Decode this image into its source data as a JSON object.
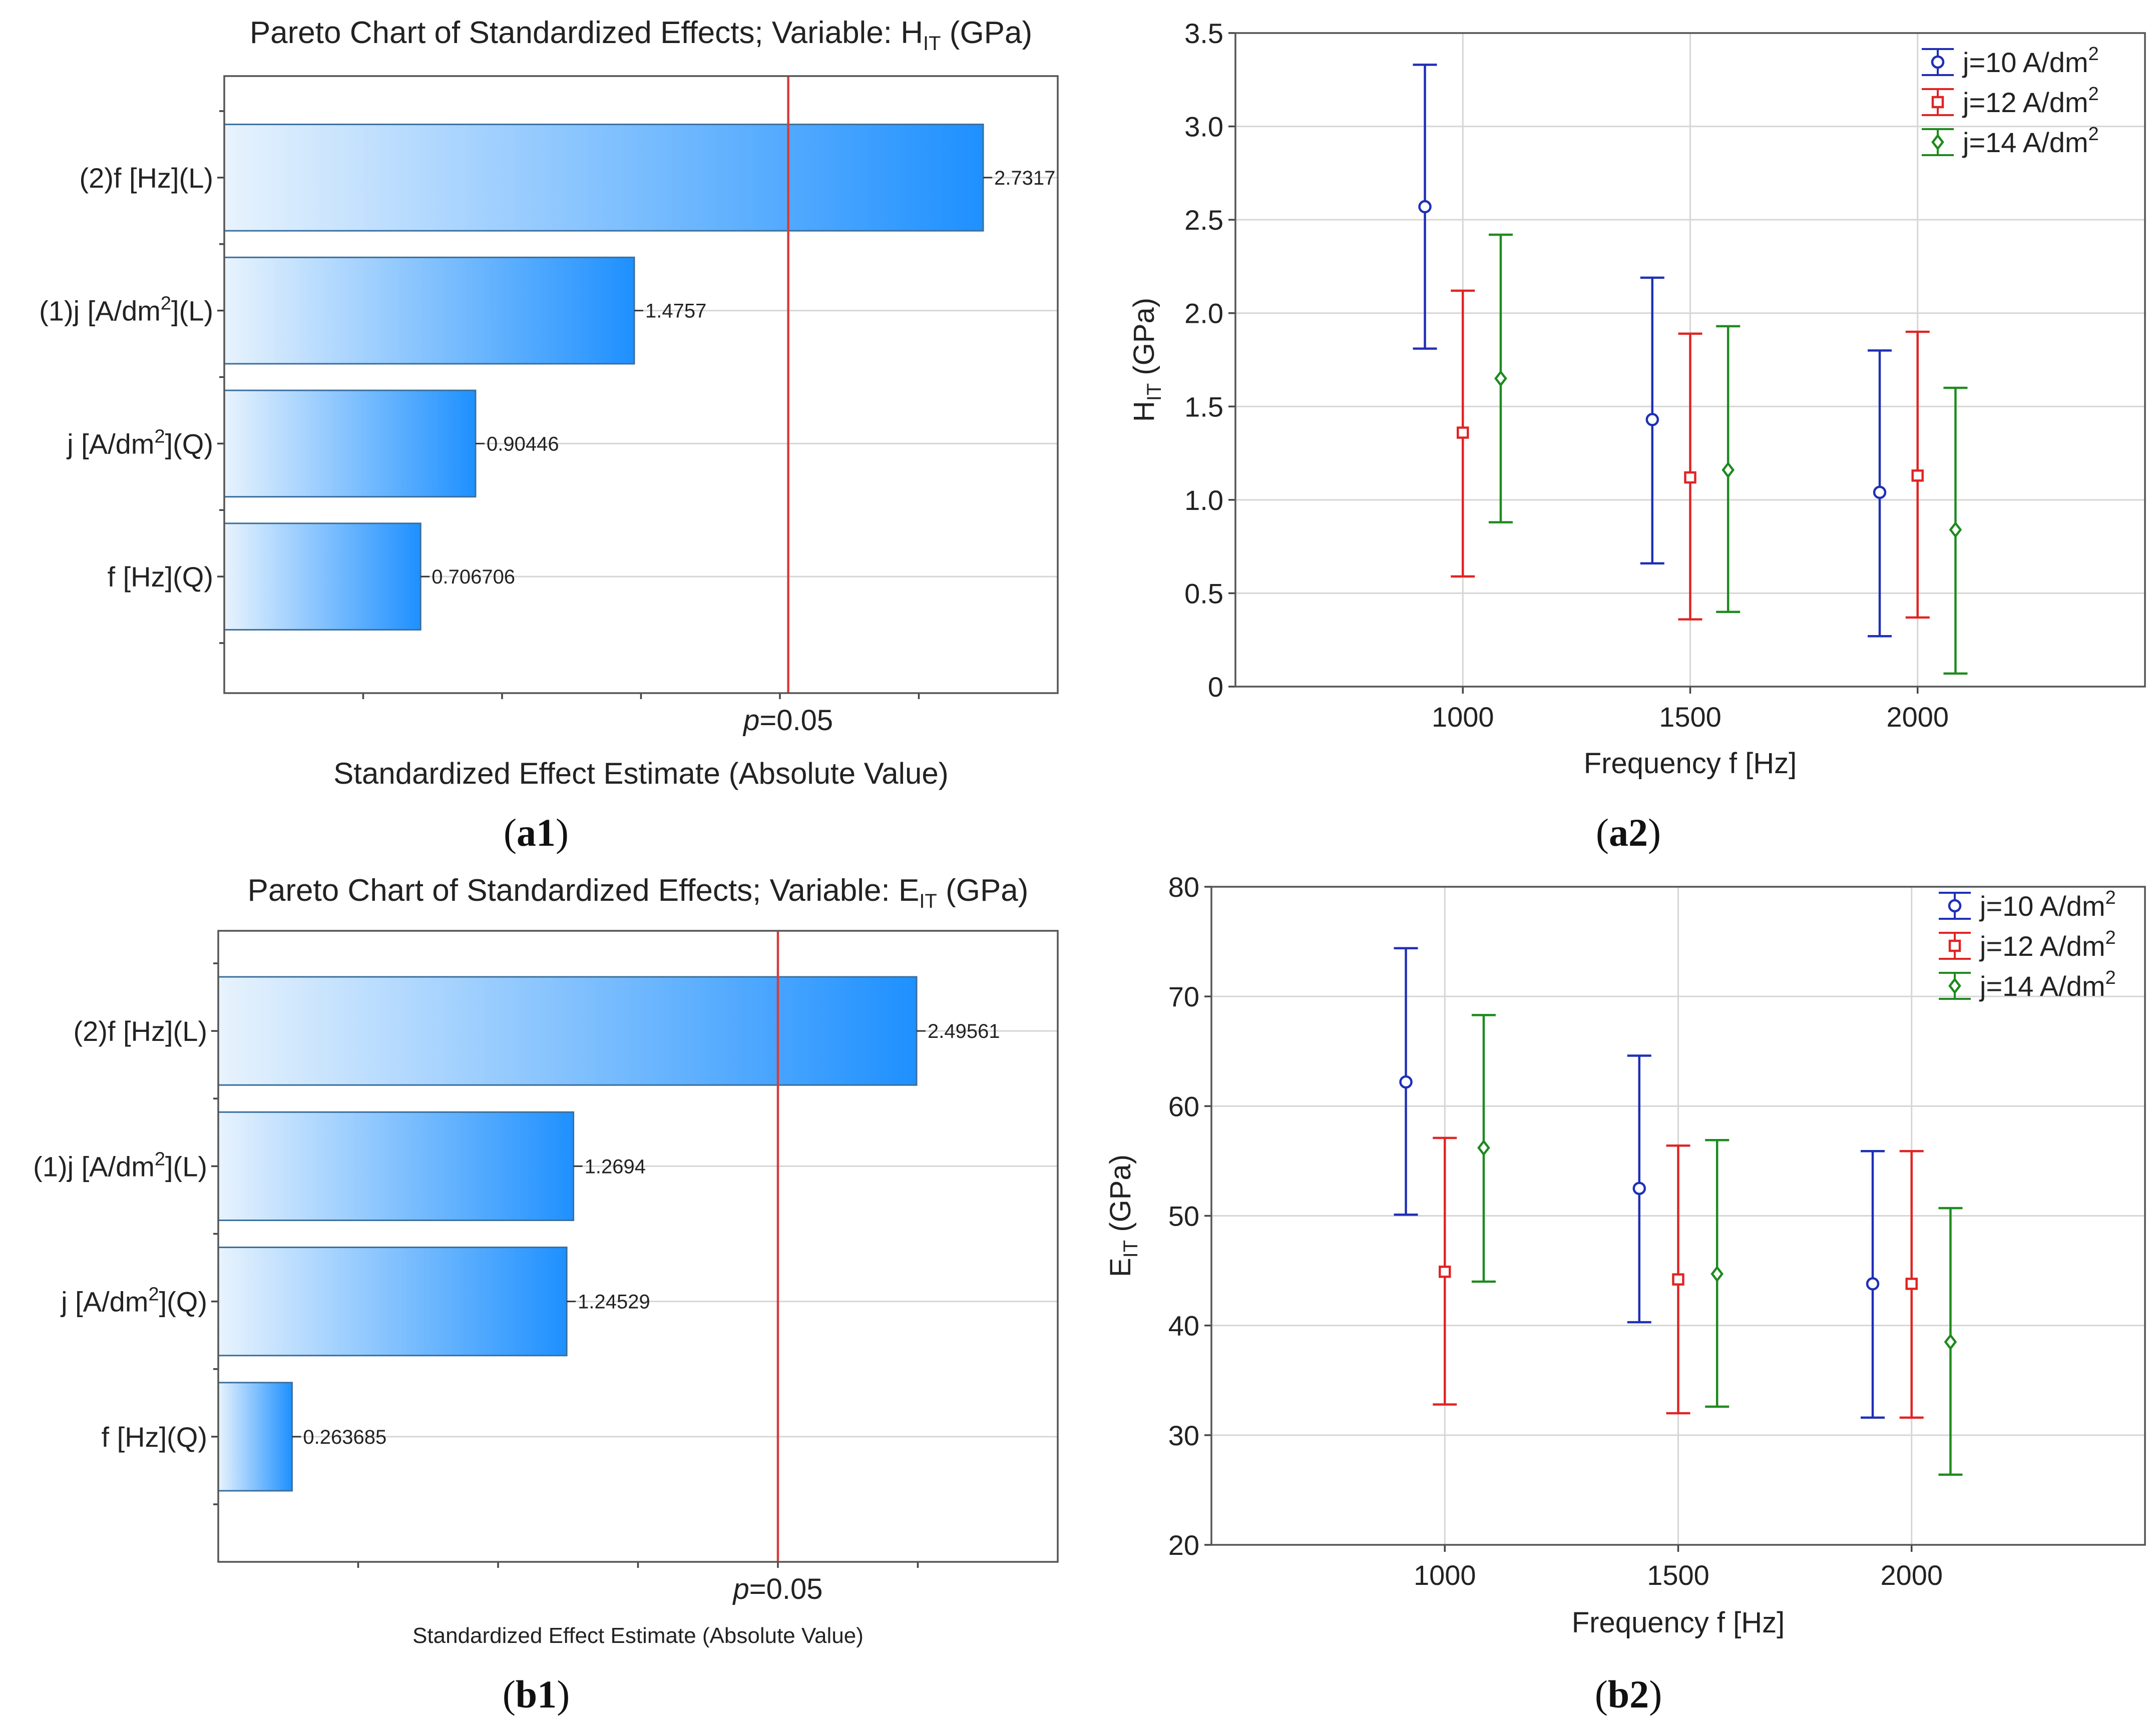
{
  "colors": {
    "bar_light": "#e8f3fd",
    "bar_dark": "#1e90ff",
    "bar_stroke": "#3a6f9e",
    "pline": "#d93b3b",
    "series_blue": "#1f2fb6",
    "series_red": "#e02424",
    "series_green": "#1e8a1e"
  },
  "chart_data": [
    {
      "id": "a1",
      "type": "bar",
      "orientation": "horizontal",
      "title_pre": "Pareto Chart of Standardized Effects; Variable: H",
      "title_sub": "IT",
      "title_post": " (GPa)",
      "xlabel": "Standardized Effect Estimate (Absolute Value)",
      "panel_label": "a1",
      "p_line": {
        "value": 2.03,
        "label_p": "p",
        "label_rest": "=0.05"
      },
      "xlim": [
        0,
        3.0
      ],
      "bars": [
        {
          "pre": "(2)f [Hz](L)",
          "sup": "",
          "post": "",
          "value": 2.7317,
          "label": "2.7317"
        },
        {
          "pre": "(1)j [A/dm",
          "sup": "2",
          "post": "](L)",
          "value": 1.4757,
          "label": "1.4757"
        },
        {
          "pre": "j [A/dm",
          "sup": "2",
          "post": "](Q)",
          "value": 0.90446,
          "label": "0.90446"
        },
        {
          "pre": "f [Hz](Q)",
          "sup": "",
          "post": "",
          "value": 0.706706,
          "label": "0.706706"
        }
      ]
    },
    {
      "id": "a2",
      "type": "scatter",
      "errorbars": true,
      "ylabel_pre": "H",
      "ylabel_sub": "IT",
      "ylabel_post": " (GPa)",
      "xlabel": "Frequency f [Hz]",
      "panel_label": "a2",
      "xlim": [
        500,
        2500
      ],
      "ylim": [
        0,
        3.5
      ],
      "x_ticks": [
        1000,
        1500,
        2000
      ],
      "y_ticks": [
        0,
        0.5,
        1.0,
        1.5,
        2.0,
        2.5,
        3.0,
        3.5
      ],
      "y_tick_labels": [
        "0",
        "0.5",
        "1.0",
        "1.5",
        "2.0",
        "2.5",
        "3.0",
        "3.5"
      ],
      "series": [
        {
          "name": "j=10 A/dm2",
          "label_pre": "j=10 A/dm",
          "label_sup": "2",
          "color": "#1f2fb6",
          "marker": "circle",
          "x_offset": -75,
          "x": [
            1000,
            1500,
            2000
          ],
          "mean": [
            2.57,
            1.43,
            1.04
          ],
          "lower": [
            1.81,
            0.66,
            0.27
          ],
          "upper": [
            3.33,
            2.19,
            1.8
          ]
        },
        {
          "name": "j=12 A/dm2",
          "label_pre": "j=12 A/dm",
          "label_sup": "2",
          "color": "#e02424",
          "marker": "square",
          "x_offset": 0,
          "x": [
            1000,
            1500,
            2000
          ],
          "mean": [
            1.36,
            1.12,
            1.13
          ],
          "lower": [
            0.59,
            0.36,
            0.37
          ],
          "upper": [
            2.12,
            1.89,
            1.9
          ]
        },
        {
          "name": "j=14 A/dm2",
          "label_pre": "j=14 A/dm",
          "label_sup": "2",
          "color": "#1e8a1e",
          "marker": "diamond",
          "x_offset": 75,
          "x": [
            1000,
            1500,
            2000
          ],
          "mean": [
            1.65,
            1.16,
            0.84
          ],
          "lower": [
            0.88,
            0.4,
            0.07
          ],
          "upper": [
            2.42,
            1.93,
            1.6
          ]
        }
      ]
    },
    {
      "id": "b1",
      "type": "bar",
      "orientation": "horizontal",
      "title_pre": "Pareto Chart of Standardized Effects; Variable: E",
      "title_sub": "IT",
      "title_post": " (GPa)",
      "xlabel": "Standardized Effect Estimate (Absolute Value)",
      "panel_label": "b1",
      "p_line": {
        "value": 2.0,
        "label_p": "p",
        "label_rest": "=0.05"
      },
      "xlim": [
        0,
        3.0
      ],
      "bars": [
        {
          "pre": "(2)f [Hz](L)",
          "sup": "",
          "post": "",
          "value": 2.49561,
          "label": "2.49561"
        },
        {
          "pre": "(1)j [A/dm",
          "sup": "2",
          "post": "](L)",
          "value": 1.2694,
          "label": "1.2694"
        },
        {
          "pre": "j [A/dm",
          "sup": "2",
          "post": "](Q)",
          "value": 1.24529,
          "label": "1.24529"
        },
        {
          "pre": "f [Hz](Q)",
          "sup": "",
          "post": "",
          "value": 0.263685,
          "label": "0.263685"
        }
      ]
    },
    {
      "id": "b2",
      "type": "scatter",
      "errorbars": true,
      "ylabel_pre": "E",
      "ylabel_sub": "IT",
      "ylabel_post": " (GPa)",
      "xlabel": "Frequency f [Hz]",
      "panel_label": "b2",
      "xlim": [
        500,
        2500
      ],
      "ylim": [
        20,
        80
      ],
      "x_ticks": [
        1000,
        1500,
        2000
      ],
      "y_ticks": [
        20,
        30,
        40,
        50,
        60,
        70,
        80
      ],
      "y_tick_labels": [
        "20",
        "30",
        "40",
        "50",
        "60",
        "70",
        "80"
      ],
      "series": [
        {
          "name": "j=10 A/dm2",
          "label_pre": "j=10 A/dm",
          "label_sup": "2",
          "color": "#1f2fb6",
          "marker": "circle",
          "x_offset": -75,
          "x": [
            1000,
            1500,
            2000
          ],
          "mean": [
            62.2,
            52.5,
            43.8
          ],
          "lower": [
            50.1,
            40.3,
            31.6
          ],
          "upper": [
            74.4,
            64.6,
            55.9
          ]
        },
        {
          "name": "j=12 A/dm2",
          "label_pre": "j=12 A/dm",
          "label_sup": "2",
          "color": "#e02424",
          "marker": "square",
          "x_offset": 0,
          "x": [
            1000,
            1500,
            2000
          ],
          "mean": [
            44.9,
            44.2,
            43.8
          ],
          "lower": [
            32.8,
            32.0,
            31.6
          ],
          "upper": [
            57.1,
            56.4,
            55.9
          ]
        },
        {
          "name": "j=14 A/dm2",
          "label_pre": "j=14 A/dm",
          "label_sup": "2",
          "color": "#1e8a1e",
          "marker": "diamond",
          "x_offset": 75,
          "x": [
            1000,
            1500,
            2000
          ],
          "mean": [
            56.2,
            44.7,
            38.5
          ],
          "lower": [
            44.0,
            32.6,
            26.4
          ],
          "upper": [
            68.3,
            56.9,
            50.7
          ]
        }
      ]
    }
  ]
}
